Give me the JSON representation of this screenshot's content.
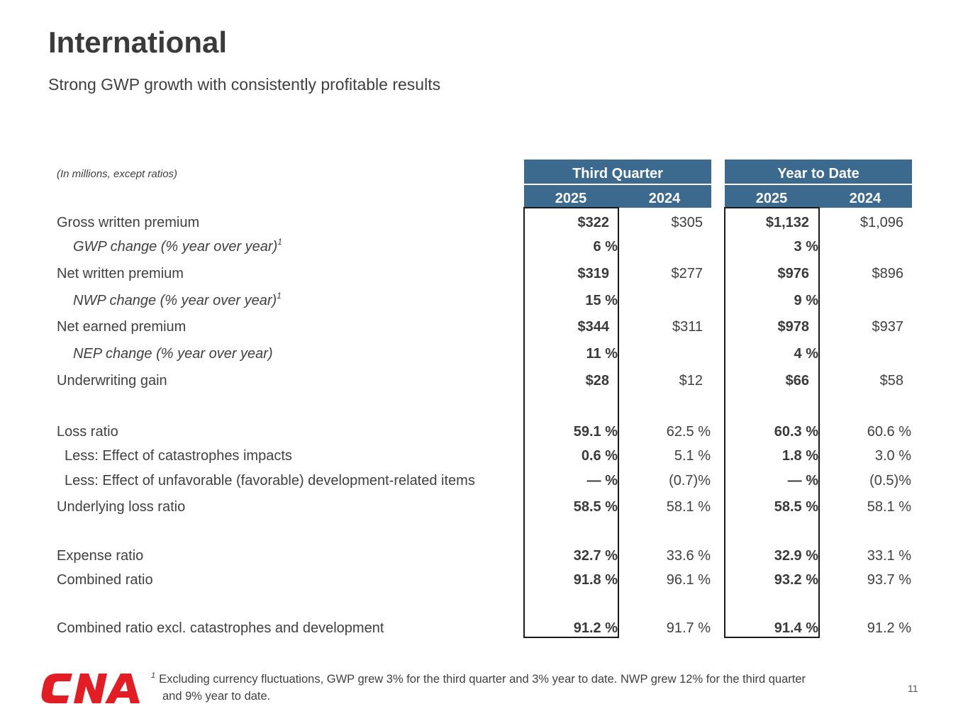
{
  "slide": {
    "title": "International",
    "subtitle": "Strong GWP growth with consistently profitable results",
    "page_number": "11"
  },
  "table": {
    "units_note": "(In millions, except ratios)",
    "groups": [
      "Third Quarter",
      "Year to Date"
    ],
    "years": [
      "2025",
      "2024",
      "2025",
      "2024"
    ],
    "rows": [
      {
        "label": "Gross written premium",
        "values": [
          "$322",
          "$305",
          "$1,132",
          "$1,096"
        ]
      },
      {
        "label": "GWP change (% year over year)",
        "footnote": "1",
        "values": [
          "6 %",
          "",
          "3 %",
          ""
        ]
      },
      {
        "label": "Net written premium",
        "values": [
          "$319",
          "$277",
          "$976",
          "$896"
        ]
      },
      {
        "label": "NWP change (% year over year)",
        "footnote": "1",
        "values": [
          "15 %",
          "",
          "9 %",
          ""
        ]
      },
      {
        "label": "Net earned premium",
        "values": [
          "$344",
          "$311",
          "$978",
          "$937"
        ]
      },
      {
        "label": "NEP change (% year over year)",
        "values": [
          "11 %",
          "",
          "4 %",
          ""
        ]
      },
      {
        "label": "Underwriting gain",
        "values": [
          "$28",
          "$12",
          "$66",
          "$58"
        ]
      },
      {
        "label": "Loss ratio",
        "values": [
          "59.1 %",
          "62.5 %",
          "60.3 %",
          "60.6 %"
        ]
      },
      {
        "label": "Less: Effect of catastrophes impacts",
        "values": [
          "0.6 %",
          "5.1 %",
          "1.8 %",
          "3.0 %"
        ]
      },
      {
        "label": "Less: Effect of unfavorable (favorable) development-related items",
        "values": [
          "— %",
          "(0.7)%",
          "— %",
          "(0.5)%"
        ]
      },
      {
        "label": "Underlying loss ratio",
        "values": [
          "58.5 %",
          "58.1 %",
          "58.5 %",
          "58.1 %"
        ]
      },
      {
        "label": "Expense ratio",
        "values": [
          "32.7 %",
          "33.6 %",
          "32.9 %",
          "33.1 %"
        ]
      },
      {
        "label": "Combined ratio",
        "values": [
          "91.8 %",
          "96.1 %",
          "93.2 %",
          "93.7 %"
        ]
      },
      {
        "label": "Combined ratio excl. catastrophes and development",
        "values": [
          "91.2 %",
          "91.7 %",
          "91.4 %",
          "91.2 %"
        ]
      }
    ]
  },
  "footer": {
    "footnote_marker": "1",
    "footnote_line1": "Excluding currency fluctuations, GWP grew 3% for the third quarter and 3% year to date.  NWP grew 12% for the third quarter",
    "footnote_line2": "and 9% year to date.",
    "logo_text": "CNA",
    "logo_color": "#e21d24"
  },
  "colors": {
    "header_bg": "#3c6a8f",
    "text": "#404040"
  }
}
